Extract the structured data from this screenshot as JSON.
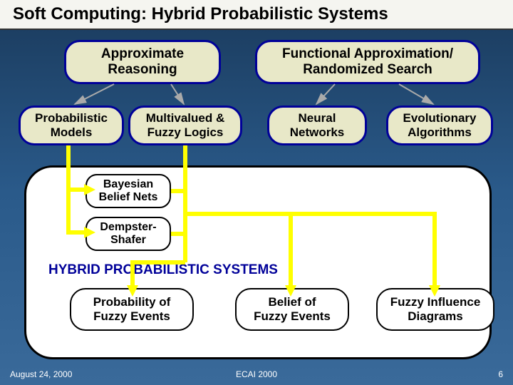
{
  "title": "Soft Computing: Hybrid Probabilistic Systems",
  "background_gradient": [
    "#1a3a5c",
    "#2a5a8a",
    "#3a6a9a"
  ],
  "colors": {
    "node_fill": "#e8e8c8",
    "node_border": "#000099",
    "container_fill": "#ffffff",
    "container_border": "#000000",
    "hybrid_title": "#000099",
    "arrow_yellow": "#ffff00",
    "arrow_gray": "#aaaaaa"
  },
  "top_nodes": {
    "approx": "Approximate\nReasoning",
    "func": "Functional Approximation/\nRandomized Search"
  },
  "mid_nodes": {
    "prob": "Probabilistic\nModels",
    "fuzzy": "Multivalued &\nFuzzy Logics",
    "neural": "Neural\nNetworks",
    "evo": "Evolutionary\nAlgorithms"
  },
  "sub_nodes": {
    "bayes": "Bayesian\nBelief Nets",
    "demp": "Dempster-\nShafer"
  },
  "hybrid": {
    "title": "HYBRID PROBABILISTIC SYSTEMS",
    "items": {
      "pfe": "Probability of\nFuzzy Events",
      "bfe": "Belief of\nFuzzy Events",
      "fid": "Fuzzy Influence\nDiagrams"
    }
  },
  "footer": {
    "date": "August 24, 2000",
    "center": "ECAI 2000",
    "page": "6"
  },
  "layout": {
    "title_fontsize": 24,
    "top_node_fontsize": 19,
    "mid_node_fontsize": 17,
    "sub_node_fontsize": 16,
    "hybrid_title_fontsize": 19,
    "hybrid_item_fontsize": 17,
    "footer_fontsize": 12,
    "node_border_radius": 22,
    "container_border_radius": 40
  }
}
